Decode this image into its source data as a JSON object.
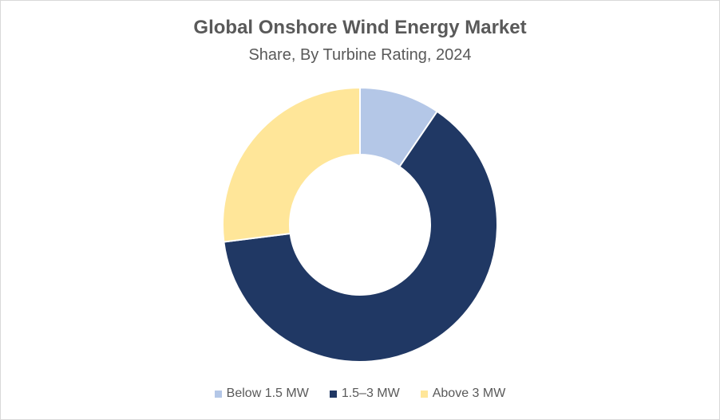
{
  "chart_data": {
    "type": "pie",
    "title": "Global Onshore Wind Energy Market",
    "subtitle": "Share, By Turbine Rating, 2024",
    "categories": [
      "Below 1.5 MW",
      "1.5–3 MW",
      "Above 3 MW"
    ],
    "values": [
      9.5,
      63.5,
      27.0
    ],
    "colors": [
      "#b4c7e7",
      "#203864",
      "#ffe699"
    ],
    "legend": "bottom"
  }
}
